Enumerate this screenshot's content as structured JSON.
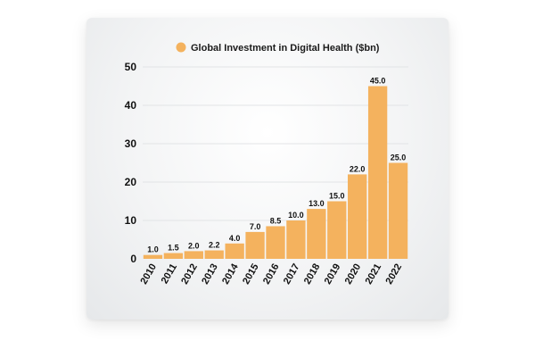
{
  "chart_data": {
    "type": "bar",
    "categories": [
      "2010",
      "2011",
      "2012",
      "2013",
      "2014",
      "2015",
      "2016",
      "2017",
      "2018",
      "2019",
      "2020",
      "2021",
      "2022"
    ],
    "series": [
      {
        "name": "Global Investment in Digital Health ($bn)",
        "values": [
          1.0,
          1.5,
          2.0,
          2.2,
          4.0,
          7.0,
          8.5,
          10.0,
          13.0,
          15.0,
          22.0,
          45.0,
          25.0
        ]
      }
    ],
    "data_labels": [
      "1.0",
      "1.5",
      "2.0",
      "2.2",
      "4.0",
      "7.0",
      "8.5",
      "10.0",
      "13.0",
      "15.0",
      "22.0",
      "45.0",
      "25.0"
    ],
    "y_ticks": [
      0,
      10,
      20,
      30,
      40,
      50
    ],
    "ylim": [
      0,
      50
    ],
    "legend_position": "top-center",
    "grid": true,
    "colors": {
      "bar": "#F4B25E",
      "grid": "#e2e4e6",
      "card_background": "#eef0f1"
    }
  }
}
